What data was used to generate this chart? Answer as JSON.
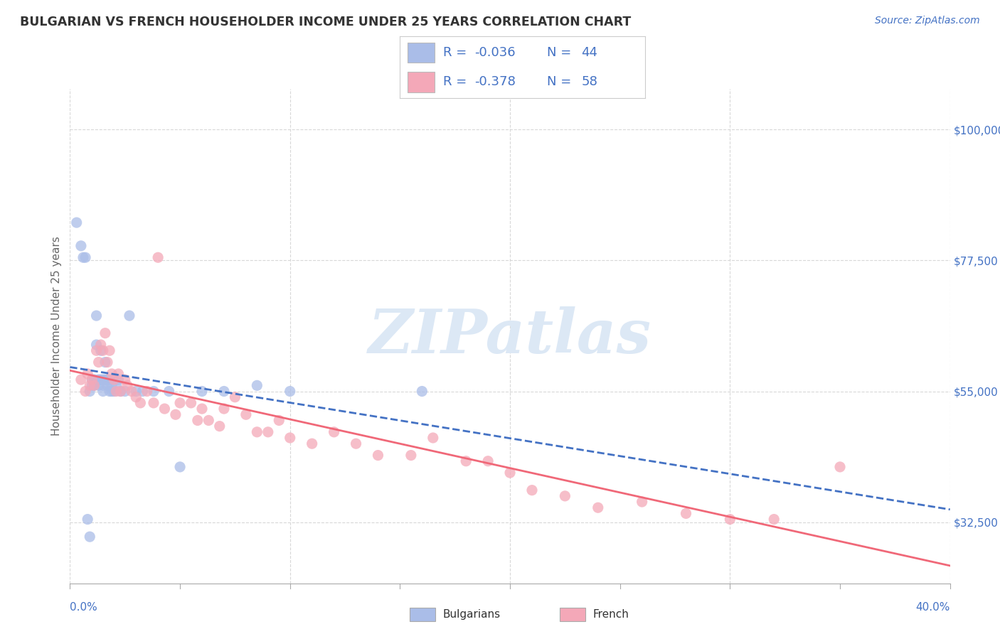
{
  "title": "BULGARIAN VS FRENCH HOUSEHOLDER INCOME UNDER 25 YEARS CORRELATION CHART",
  "source": "Source: ZipAtlas.com",
  "ylabel": "Householder Income Under 25 years",
  "ylabel_ticks": [
    "$32,500",
    "$55,000",
    "$77,500",
    "$100,000"
  ],
  "ylabel_tick_vals": [
    32500,
    55000,
    77500,
    100000
  ],
  "xlim": [
    0.0,
    0.4
  ],
  "ylim": [
    22000,
    107000
  ],
  "bg_color": "#ffffff",
  "grid_color": "#d8d8d8",
  "title_color": "#333333",
  "blue_color": "#4472c4",
  "watermark": "ZIPatlas",
  "watermark_color": "#dce8f5",
  "scatter_bulgarian_color": "#aabde8",
  "scatter_french_color": "#f4a8b8",
  "trendline_bulgarian_color": "#4472c4",
  "trendline_french_color": "#f06878",
  "bulgarian_x": [
    0.003,
    0.005,
    0.006,
    0.007,
    0.008,
    0.009,
    0.009,
    0.01,
    0.01,
    0.011,
    0.011,
    0.012,
    0.012,
    0.013,
    0.013,
    0.014,
    0.014,
    0.015,
    0.015,
    0.015,
    0.016,
    0.016,
    0.017,
    0.017,
    0.018,
    0.018,
    0.019,
    0.019,
    0.02,
    0.021,
    0.022,
    0.023,
    0.025,
    0.027,
    0.03,
    0.033,
    0.038,
    0.045,
    0.05,
    0.06,
    0.07,
    0.085,
    0.1,
    0.16
  ],
  "bulgarian_y": [
    84000,
    80000,
    78000,
    78000,
    33000,
    30000,
    55000,
    57000,
    56000,
    57000,
    56000,
    63000,
    68000,
    57000,
    56000,
    62000,
    57000,
    57000,
    56000,
    55000,
    60000,
    57000,
    57000,
    56000,
    57000,
    55000,
    56000,
    55000,
    55000,
    56000,
    57000,
    55000,
    55000,
    68000,
    55000,
    55000,
    55000,
    55000,
    42000,
    55000,
    55000,
    56000,
    55000,
    55000
  ],
  "french_x": [
    0.005,
    0.007,
    0.008,
    0.009,
    0.01,
    0.011,
    0.012,
    0.013,
    0.014,
    0.015,
    0.016,
    0.017,
    0.018,
    0.019,
    0.02,
    0.021,
    0.022,
    0.023,
    0.025,
    0.026,
    0.028,
    0.03,
    0.032,
    0.035,
    0.038,
    0.04,
    0.043,
    0.048,
    0.05,
    0.055,
    0.058,
    0.06,
    0.063,
    0.068,
    0.07,
    0.075,
    0.08,
    0.085,
    0.09,
    0.095,
    0.1,
    0.11,
    0.12,
    0.13,
    0.14,
    0.155,
    0.165,
    0.18,
    0.19,
    0.2,
    0.21,
    0.225,
    0.24,
    0.26,
    0.28,
    0.3,
    0.32,
    0.35
  ],
  "french_y": [
    57000,
    55000,
    58000,
    56000,
    57000,
    56000,
    62000,
    60000,
    63000,
    62000,
    65000,
    60000,
    62000,
    58000,
    57000,
    55000,
    58000,
    55000,
    57000,
    56000,
    55000,
    54000,
    53000,
    55000,
    53000,
    78000,
    52000,
    51000,
    53000,
    53000,
    50000,
    52000,
    50000,
    49000,
    52000,
    54000,
    51000,
    48000,
    48000,
    50000,
    47000,
    46000,
    48000,
    46000,
    44000,
    44000,
    47000,
    43000,
    43000,
    41000,
    38000,
    37000,
    35000,
    36000,
    34000,
    33000,
    33000,
    42000
  ]
}
